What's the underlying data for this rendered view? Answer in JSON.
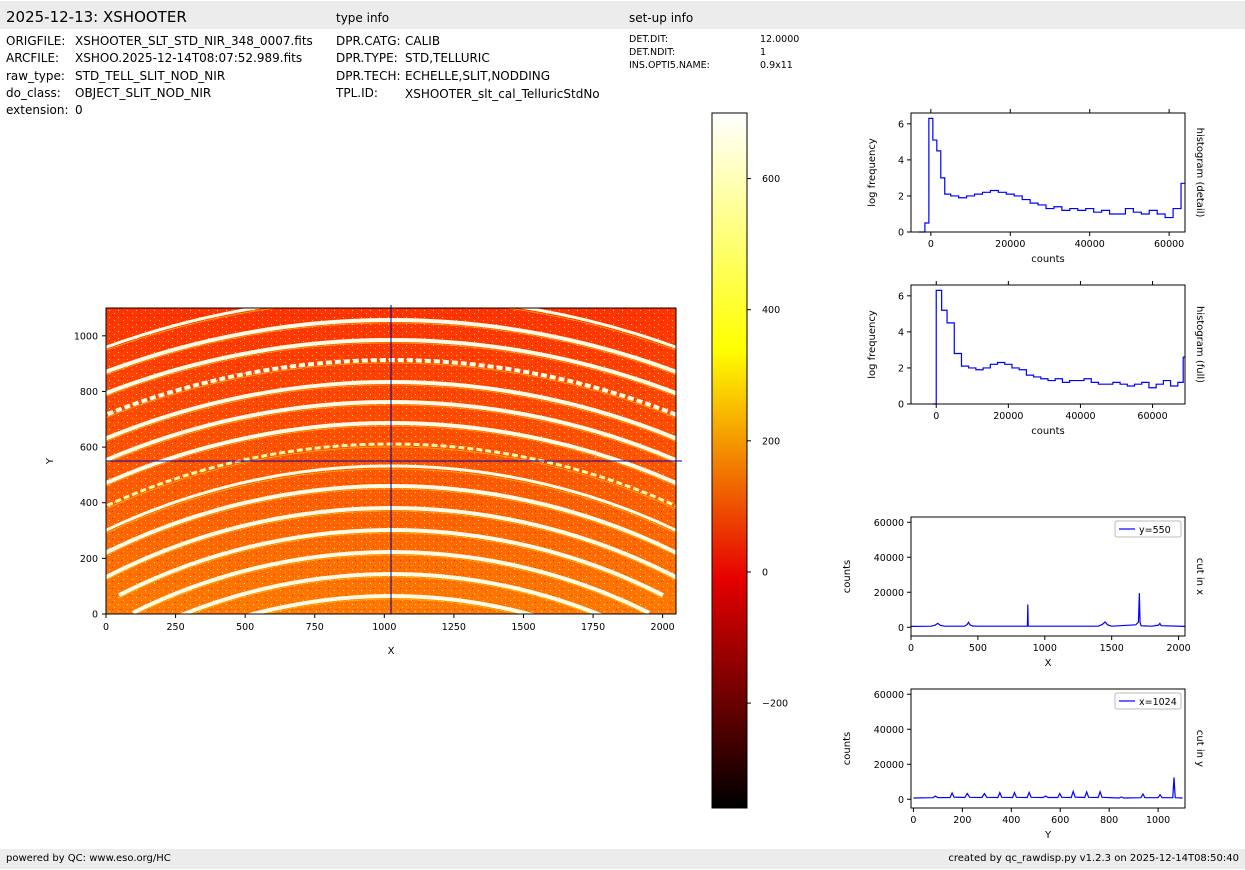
{
  "header": {
    "title": "2025-12-13: XSHOOTER",
    "type_info_label": "type info",
    "setup_info_label": "set-up info"
  },
  "file_info": [
    {
      "key": "ORIGFILE:",
      "value": "XSHOOTER_SLT_STD_NIR_348_0007.fits"
    },
    {
      "key": "ARCFILE:",
      "value": "XSHOO.2025-12-14T08:07:52.989.fits"
    },
    {
      "key": "raw_type:",
      "value": "STD_TELL_SLIT_NOD_NIR"
    },
    {
      "key": "do_class:",
      "value": "OBJECT_SLIT_NOD_NIR"
    },
    {
      "key": "extension:",
      "value": "0"
    }
  ],
  "type_info": [
    {
      "key": "DPR.CATG:",
      "value": "CALIB"
    },
    {
      "key": "DPR.TYPE:",
      "value": "STD,TELLURIC"
    },
    {
      "key": "DPR.TECH:",
      "value": "ECHELLE,SLIT,NODDING"
    },
    {
      "key": "TPL.ID:",
      "value": "XSHOOTER_slt_cal_TelluricStdNo"
    }
  ],
  "setup_info": [
    {
      "key": "DET.DIT:",
      "value": "12.0000"
    },
    {
      "key": "DET.NDIT:",
      "value": "1"
    },
    {
      "key": "INS.OPTI5.NAME:",
      "value": "0.9x11"
    }
  ],
  "footer": {
    "left": "powered by QC: www.eso.org/HC",
    "right": "created by qc_rawdisp.py v1.2.3 on 2025-12-14T08:50:40"
  },
  "colors": {
    "line": "#0000ff",
    "crosshair": "#0000aa",
    "footer_bg": "#ececec"
  },
  "chart_data": [
    {
      "type": "heatmap",
      "xlabel": "X",
      "ylabel": "Y",
      "xlim": [
        0,
        2048
      ],
      "ylim": [
        0,
        1100
      ],
      "xticks": [
        0,
        250,
        500,
        750,
        1000,
        1250,
        1500,
        1750,
        2000
      ],
      "yticks": [
        0,
        200,
        400,
        600,
        800,
        1000
      ],
      "crosshair": {
        "x": 1024,
        "y": 550
      },
      "colormap": "hot",
      "colorbar": {
        "range": [
          -360,
          700
        ],
        "ticks": [
          -200,
          0,
          200,
          400,
          600
        ]
      }
    },
    {
      "type": "line",
      "ylabel": "log frequency",
      "xlabel": "counts",
      "side_label": "histogram (detail)",
      "xlim": [
        -5000,
        64000
      ],
      "ylim": [
        0,
        6.6
      ],
      "xticks": [
        0,
        20000,
        40000,
        60000
      ],
      "yticks": [
        0,
        2,
        4,
        6
      ],
      "x": [
        -3000,
        -1500,
        -500,
        500,
        1500,
        2500,
        3500,
        5000,
        7000,
        9000,
        11000,
        13000,
        15000,
        17000,
        19000,
        21000,
        23000,
        25000,
        27000,
        29000,
        31000,
        33000,
        35000,
        37000,
        39000,
        41000,
        43000,
        45000,
        47000,
        49000,
        51000,
        53000,
        55000,
        57000,
        59000,
        61000,
        63000
      ],
      "values": [
        0,
        0.5,
        6.3,
        5.1,
        4.5,
        3.0,
        2.1,
        2.0,
        1.9,
        2.0,
        2.1,
        2.2,
        2.3,
        2.2,
        2.1,
        2.0,
        1.8,
        1.6,
        1.5,
        1.3,
        1.4,
        1.2,
        1.3,
        1.2,
        1.3,
        1.1,
        1.2,
        1.0,
        1.0,
        1.3,
        1.1,
        1.0,
        1.2,
        1.0,
        0.8,
        1.3,
        2.7
      ]
    },
    {
      "type": "line",
      "ylabel": "log frequency",
      "xlabel": "counts",
      "side_label": "histogram (full)",
      "xlim": [
        -7000,
        69000
      ],
      "ylim": [
        0,
        6.6
      ],
      "xticks": [
        0,
        20000,
        40000,
        60000
      ],
      "yticks": [
        0,
        2,
        4,
        6
      ],
      "x": [
        -1000,
        0,
        1500,
        3000,
        5000,
        7000,
        9000,
        11000,
        13000,
        15000,
        17000,
        19000,
        21000,
        23000,
        25000,
        27000,
        29000,
        31000,
        33000,
        35000,
        37000,
        39000,
        41000,
        43000,
        45000,
        47000,
        49000,
        51000,
        53000,
        55000,
        57000,
        59000,
        61000,
        63000,
        65000,
        67000,
        68500
      ],
      "values": [
        0,
        6.3,
        5.2,
        4.5,
        2.8,
        2.1,
        2.0,
        1.9,
        2.0,
        2.2,
        2.3,
        2.2,
        2.0,
        1.9,
        1.6,
        1.5,
        1.4,
        1.3,
        1.4,
        1.2,
        1.3,
        1.3,
        1.4,
        1.2,
        1.1,
        1.1,
        1.2,
        1.1,
        1.0,
        1.1,
        1.2,
        0.9,
        1.1,
        1.3,
        1.0,
        1.2,
        2.6
      ]
    },
    {
      "type": "line",
      "ylabel": "counts",
      "xlabel": "X",
      "side_label": "cut in x",
      "legend": "y=550",
      "xlim": [
        0,
        2048
      ],
      "ylim": [
        -5000,
        63000
      ],
      "xticks": [
        0,
        500,
        1000,
        1500,
        2000
      ],
      "yticks": [
        0,
        20000,
        40000,
        60000
      ],
      "x": [
        0,
        150,
        180,
        200,
        220,
        250,
        400,
        420,
        430,
        440,
        460,
        500,
        870,
        873,
        876,
        880,
        1400,
        1430,
        1450,
        1470,
        1500,
        1680,
        1700,
        1707,
        1712,
        1720,
        1800,
        1850,
        1860,
        1870,
        2048
      ],
      "values": [
        500,
        600,
        1200,
        2200,
        1100,
        600,
        600,
        1600,
        2800,
        1400,
        700,
        600,
        600,
        13000,
        900,
        600,
        600,
        1600,
        3000,
        1400,
        600,
        1400,
        3000,
        19500,
        2800,
        800,
        600,
        1200,
        2200,
        900,
        500
      ]
    },
    {
      "type": "line",
      "ylabel": "counts",
      "xlabel": "Y",
      "side_label": "cut in y",
      "legend": "x=1024",
      "xlim": [
        -10,
        1110
      ],
      "ylim": [
        -5000,
        63000
      ],
      "xticks": [
        0,
        200,
        400,
        600,
        800,
        1000
      ],
      "yticks": [
        0,
        20000,
        40000,
        60000
      ],
      "x": [
        0,
        80,
        90,
        100,
        150,
        158,
        166,
        210,
        220,
        230,
        280,
        290,
        300,
        345,
        353,
        361,
        405,
        413,
        421,
        465,
        473,
        481,
        530,
        540,
        550,
        590,
        598,
        606,
        645,
        653,
        661,
        700,
        708,
        716,
        755,
        763,
        771,
        840,
        850,
        860,
        930,
        938,
        946,
        1000,
        1008,
        1016,
        1060,
        1065,
        1070,
        1100
      ],
      "values": [
        700,
        900,
        1800,
        900,
        1000,
        3600,
        1200,
        1000,
        3300,
        1100,
        1000,
        3200,
        1100,
        1000,
        3800,
        1100,
        1000,
        3800,
        1100,
        1000,
        3900,
        1100,
        1000,
        1800,
        1000,
        1000,
        3300,
        1100,
        1000,
        4500,
        1200,
        1000,
        4200,
        1100,
        1000,
        4300,
        1100,
        700,
        1300,
        700,
        900,
        3000,
        900,
        900,
        2600,
        900,
        900,
        12500,
        900,
        700
      ]
    }
  ]
}
